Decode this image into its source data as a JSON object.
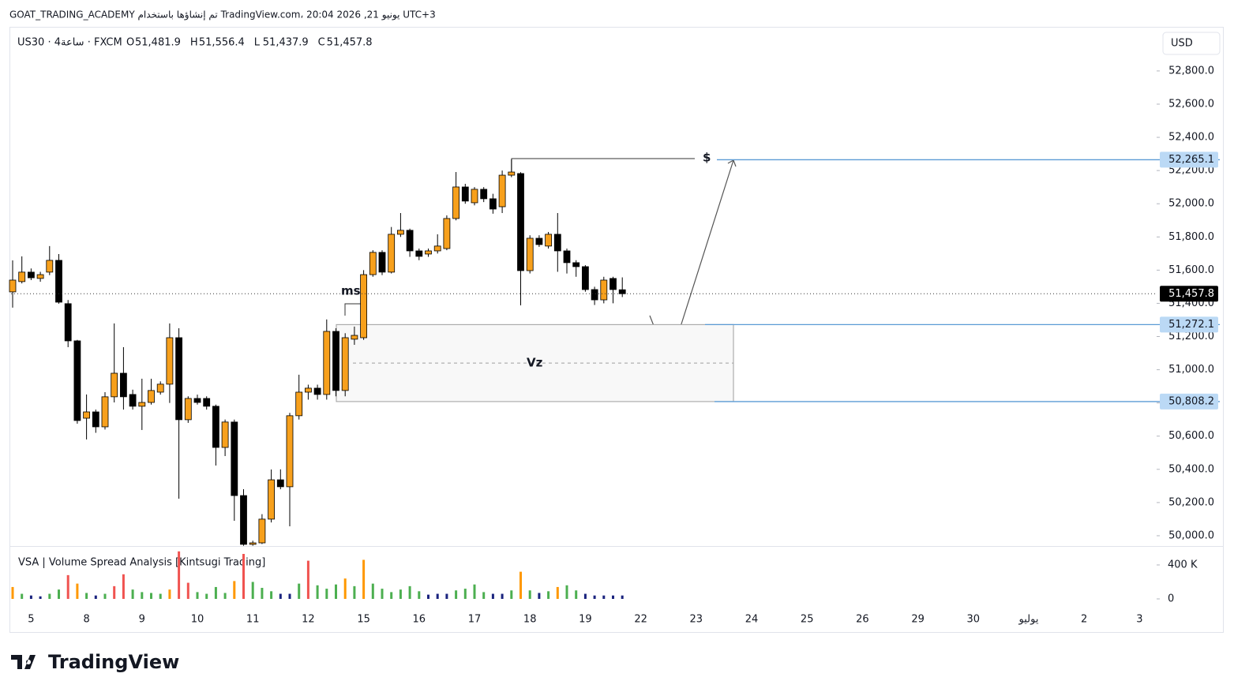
{
  "header": "GOAT_TRADING_ACADEMY تم إنشاؤها باستخدام TradingView.com، 20:04 2026 ,21 يونيو UTC+3",
  "logo": "TradingView",
  "chart_data": {
    "type": "candlestick",
    "symbol": "US30 · 4ساعة · FXCM",
    "legend_values": [
      {
        "key": "O",
        "label": "51,481.9"
      },
      {
        "key": "H",
        "label": "51,556.4"
      },
      {
        "key": "L",
        "label": "51,437.9"
      },
      {
        "key": "C",
        "label": "51,457.8"
      }
    ],
    "currency": "USD",
    "up_color": "#f7a01c",
    "down_color": "#000000",
    "open": [
      51469,
      51531,
      51588,
      51550,
      51588,
      51659,
      51398,
      51174,
      50708,
      50746,
      50656,
      50837,
      50979,
      50851,
      50780,
      50803,
      50865,
      50913,
      51193,
      50699,
      50827,
      50827,
      50780,
      50532,
      50685,
      50242,
      49948,
      49957,
      50100,
      50337,
      50295,
      50723,
      50865,
      50889,
      50851,
      51231,
      50875,
      51184,
      51193,
      51573,
      51707,
      51588,
      51816,
      51840,
      51716,
      51697,
      51716,
      51730,
      51911,
      52101,
      52006,
      52087,
      52030,
      51982,
      52172,
      52182,
      51597,
      51792,
      51745,
      51816,
      51716,
      51645,
      51621,
      51483,
      51421,
      51550,
      51481.9
    ],
    "high": [
      51659,
      51683,
      51610,
      51590,
      51745,
      51697,
      51420,
      51180,
      50851,
      50760,
      50865,
      51279,
      51136,
      50880,
      50946,
      50946,
      50930,
      51279,
      51250,
      50840,
      50850,
      50840,
      50790,
      50700,
      50700,
      50280,
      49970,
      50130,
      50399,
      50400,
      50740,
      50970,
      50910,
      50910,
      51303,
      51250,
      51220,
      51260,
      51600,
      51720,
      51720,
      51860,
      51944,
      51850,
      51730,
      51730,
      51816,
      51930,
      52191,
      52120,
      52100,
      52100,
      52060,
      52200,
      52268,
      52190,
      51810,
      51810,
      51830,
      51944,
      51730,
      51660,
      51630,
      51500,
      51560,
      51560,
      51556.4
    ],
    "low": [
      51374,
      51520,
      51540,
      51530,
      51570,
      51398,
      51136,
      50675,
      50580,
      50620,
      50640,
      50803,
      50760,
      50760,
      50637,
      50790,
      50850,
      50800,
      50223,
      50680,
      50790,
      50760,
      50423,
      50480,
      50090,
      49940,
      49940,
      49950,
      50080,
      50280,
      50057,
      50700,
      50820,
      50820,
      50820,
      50840,
      50840,
      51150,
      51180,
      51560,
      51570,
      51580,
      51800,
      51680,
      51660,
      51680,
      51700,
      51720,
      51900,
      52000,
      51990,
      52010,
      51940,
      51944,
      52160,
      51388,
      51580,
      51740,
      51730,
      51590,
      51580,
      51560,
      51470,
      51390,
      51400,
      51400,
      51437.9
    ],
    "close": [
      51540,
      51588,
      51554,
      51573,
      51659,
      51407,
      51174,
      50694,
      50746,
      50656,
      50837,
      50979,
      50837,
      50780,
      50803,
      50875,
      50913,
      51193,
      50699,
      50827,
      50803,
      50780,
      50532,
      50685,
      50242,
      49948,
      49957,
      50100,
      50337,
      50295,
      50723,
      50865,
      50889,
      50851,
      51231,
      50875,
      51193,
      51207,
      51573,
      51707,
      51588,
      51816,
      51840,
      51716,
      51683,
      51716,
      51745,
      51911,
      52101,
      52016,
      52087,
      52030,
      51968,
      52172,
      52191,
      51597,
      51792,
      51754,
      51816,
      51716,
      51645,
      51621,
      51483,
      51421,
      51540,
      51483,
      51457.8
    ],
    "ylim": [
      49938,
      53061
    ],
    "yticks": [
      {
        "value": 52800,
        "label": "52,800.0"
      },
      {
        "value": 52600,
        "label": "52,600.0"
      },
      {
        "value": 52400,
        "label": "52,400.0"
      },
      {
        "value": 52200,
        "label": "52,200.0"
      },
      {
        "value": 52000,
        "label": "52,000.0"
      },
      {
        "value": 51800,
        "label": "51,800.0"
      },
      {
        "value": 51600,
        "label": "51,600.0"
      },
      {
        "value": 51400,
        "label": "51,400.0"
      },
      {
        "value": 51200,
        "label": "51,200.0"
      },
      {
        "value": 51000,
        "label": "51,000.0"
      },
      {
        "value": 50800,
        "label": "50,800.0"
      },
      {
        "value": 50600,
        "label": "50,600.0"
      },
      {
        "value": 50400,
        "label": "50,400.0"
      },
      {
        "value": 50200,
        "label": "50,200.0"
      },
      {
        "value": 50000,
        "label": "50,000.0"
      }
    ],
    "x_labels": [
      "5",
      "8",
      "9",
      "10",
      "11",
      "12",
      "15",
      "16",
      "17",
      "18",
      "19",
      "22",
      "23",
      "24",
      "25",
      "26",
      "29",
      "30",
      "يوليو",
      "2",
      "3"
    ],
    "last_price": {
      "value": 51457.8,
      "label": "51,457.8"
    },
    "levels": [
      {
        "value": 52265.1,
        "label": "52,265.1"
      },
      {
        "value": 51272.1,
        "label": "51,272.1"
      },
      {
        "value": 50808.2,
        "label": "50,808.2"
      }
    ],
    "level_color": "#5b9bd5",
    "annotations": [
      "ms",
      "$",
      "Vz"
    ],
    "volume": {
      "title": "VSA | Volume Spread Analysis [Kintsugi Trading]",
      "values": [
        140000,
        60000,
        40000,
        30000,
        60000,
        110000,
        280000,
        180000,
        70000,
        40000,
        60000,
        150000,
        290000,
        110000,
        80000,
        70000,
        60000,
        110000,
        560000,
        190000,
        80000,
        60000,
        140000,
        70000,
        210000,
        530000,
        200000,
        130000,
        90000,
        60000,
        60000,
        180000,
        450000,
        160000,
        120000,
        170000,
        240000,
        150000,
        460000,
        180000,
        120000,
        80000,
        110000,
        150000,
        90000,
        50000,
        60000,
        60000,
        100000,
        120000,
        170000,
        80000,
        60000,
        60000,
        100000,
        320000,
        100000,
        70000,
        90000,
        140000,
        160000,
        100000,
        60000,
        40000,
        40000,
        40000,
        40000
      ],
      "colors": [
        "#ff9800",
        "#4caf50",
        "#1a237e",
        "#1a237e",
        "#4caf50",
        "#4caf50",
        "#f05350",
        "#ff9800",
        "#4caf50",
        "#1a237e",
        "#4caf50",
        "#f05350",
        "#f05350",
        "#4caf50",
        "#4caf50",
        "#4caf50",
        "#4caf50",
        "#ff9800",
        "#f05350",
        "#f05350",
        "#4caf50",
        "#4caf50",
        "#4caf50",
        "#4caf50",
        "#ff9800",
        "#f05350",
        "#4caf50",
        "#4caf50",
        "#4caf50",
        "#1a237e",
        "#1a237e",
        "#4caf50",
        "#f05350",
        "#4caf50",
        "#4caf50",
        "#4caf50",
        "#ff9800",
        "#4caf50",
        "#ff9800",
        "#4caf50",
        "#4caf50",
        "#4caf50",
        "#4caf50",
        "#4caf50",
        "#4caf50",
        "#1a237e",
        "#1a237e",
        "#1a237e",
        "#4caf50",
        "#4caf50",
        "#4caf50",
        "#4caf50",
        "#1a237e",
        "#1a237e",
        "#4caf50",
        "#ff9800",
        "#4caf50",
        "#1a237e",
        "#4caf50",
        "#ff9800",
        "#4caf50",
        "#4caf50",
        "#1a237e",
        "#1a237e",
        "#1a237e",
        "#1a237e",
        "#1a237e"
      ],
      "ylim": [
        0,
        595000
      ],
      "yticks": [
        {
          "value": 400000,
          "label": "400 K"
        },
        0
      ]
    }
  }
}
